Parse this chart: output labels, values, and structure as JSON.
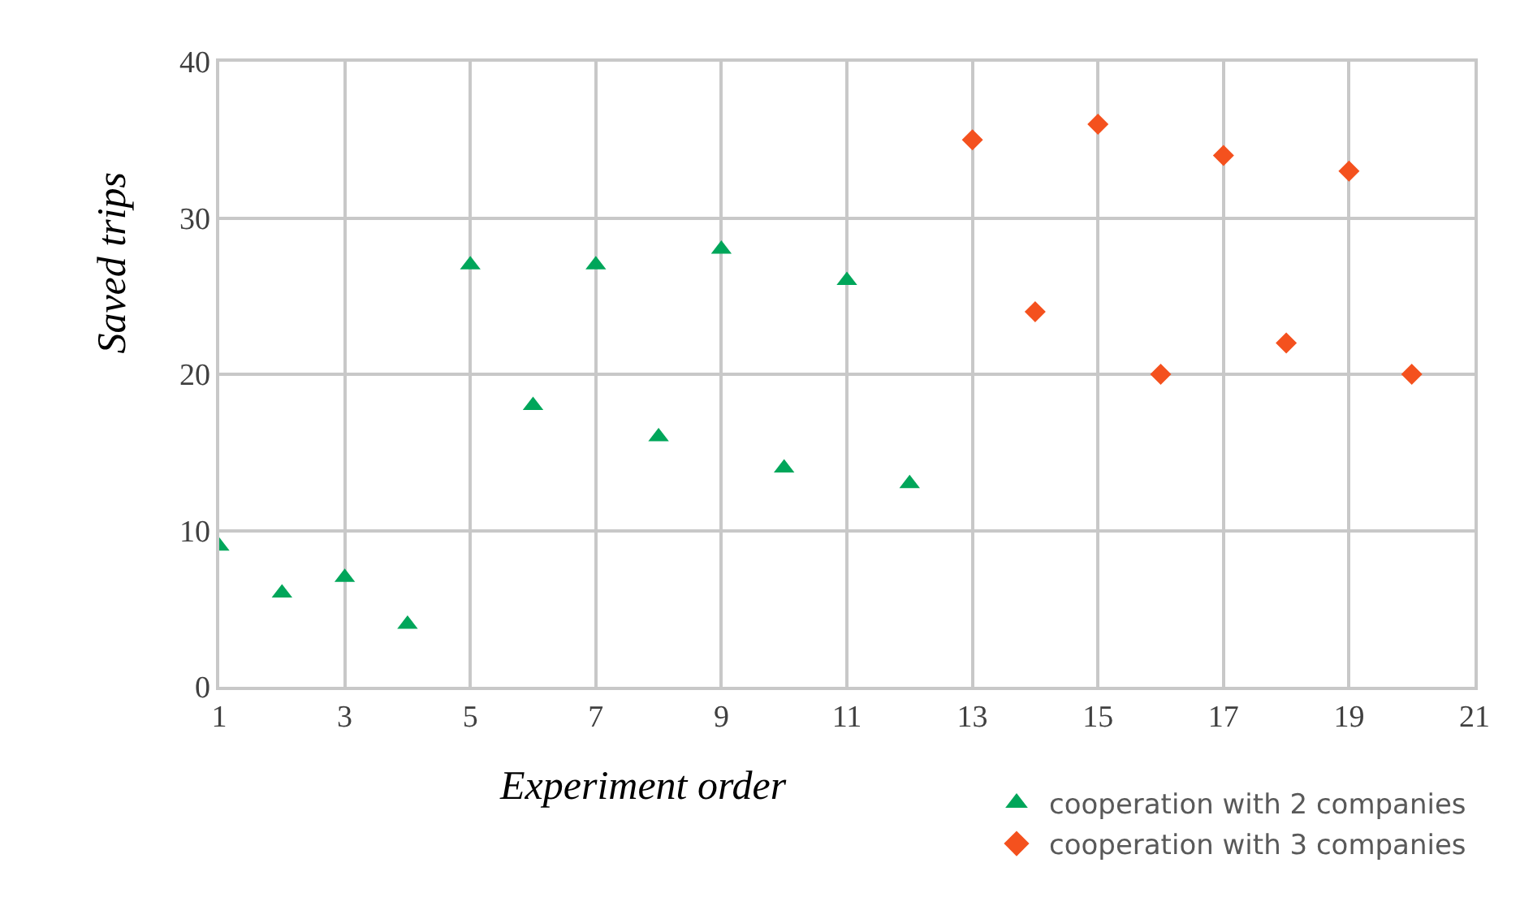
{
  "chart_data": {
    "type": "scatter",
    "xlabel": "Experiment order",
    "ylabel": "Saved trips",
    "xlim": [
      1,
      21
    ],
    "xticks": [
      1,
      3,
      5,
      7,
      9,
      11,
      13,
      15,
      17,
      19,
      21
    ],
    "ylim": [
      0,
      40
    ],
    "yticks": [
      0,
      10,
      20,
      30,
      40
    ],
    "grid": true,
    "legend": "bottom right",
    "series": [
      {
        "name": "cooperation with 2 companies",
        "color": "#00a65a",
        "marker": "triangle",
        "x": [
          1,
          2,
          3,
          4,
          5,
          6,
          7,
          8,
          9,
          10,
          11,
          12
        ],
        "values": [
          9,
          6,
          7,
          4,
          27,
          18,
          27,
          16,
          28,
          14,
          26,
          13
        ]
      },
      {
        "name": "cooperation with 3 companies",
        "color": "#f4511e",
        "marker": "diamond",
        "x": [
          13,
          14,
          15,
          16,
          17,
          18,
          19,
          20
        ],
        "values": [
          35,
          24,
          36,
          20,
          34,
          22,
          33,
          20
        ]
      }
    ]
  }
}
